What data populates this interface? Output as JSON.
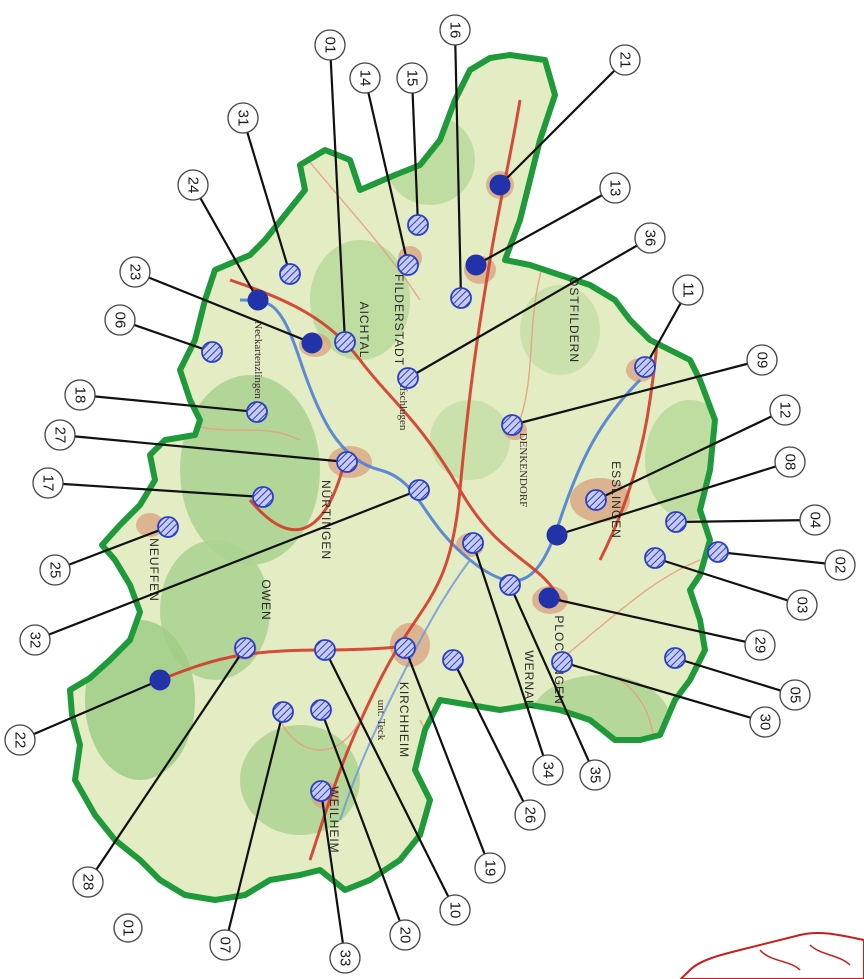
{
  "map": {
    "orientation": "rotated 90° clockwise",
    "colors": {
      "district_border": "#1f9a3a",
      "terrain_low": "#e8efc8",
      "terrain_forest": "#a8d08d",
      "road_main": "#d23b2a",
      "river": "#4d7fd6",
      "marker_fill": "#2233aa",
      "marker_outline": "#2a3fc7",
      "callout_line": "#111111",
      "callout_circle_fill": "#ffffff",
      "inset_outline": "#cc1d1d"
    },
    "place_labels": [
      "FILDERSTADT",
      "OSTFILDERN",
      "ESSLINGEN",
      "PLOCHINGEN",
      "WERNAU",
      "KIRCHHEIM",
      "unt. Teck",
      "NÜRTINGEN",
      "OWEN",
      "WEILHEIM",
      "AICHTAL",
      "DENKENDORF",
      "NEUFFEN",
      "Wolfschlugen",
      "Neckartenzlingen"
    ],
    "markers": [
      {
        "id": "01",
        "kind": "hatched"
      },
      {
        "id": "02",
        "kind": "hatched"
      },
      {
        "id": "03",
        "kind": "hatched"
      },
      {
        "id": "04",
        "kind": "hatched"
      },
      {
        "id": "05",
        "kind": "hatched"
      },
      {
        "id": "06",
        "kind": "hatched"
      },
      {
        "id": "07",
        "kind": "hatched"
      },
      {
        "id": "08",
        "kind": "solid"
      },
      {
        "id": "09",
        "kind": "hatched"
      },
      {
        "id": "10",
        "kind": "hatched"
      },
      {
        "id": "11",
        "kind": "hatched"
      },
      {
        "id": "12",
        "kind": "hatched"
      },
      {
        "id": "13",
        "kind": "solid"
      },
      {
        "id": "14",
        "kind": "hatched"
      },
      {
        "id": "15",
        "kind": "hatched"
      },
      {
        "id": "16",
        "kind": "hatched"
      },
      {
        "id": "17",
        "kind": "hatched"
      },
      {
        "id": "18",
        "kind": "hatched"
      },
      {
        "id": "19",
        "kind": "hatched"
      },
      {
        "id": "20",
        "kind": "hatched"
      },
      {
        "id": "21",
        "kind": "solid"
      },
      {
        "id": "22",
        "kind": "solid"
      },
      {
        "id": "23",
        "kind": "solid"
      },
      {
        "id": "24",
        "kind": "solid"
      },
      {
        "id": "25",
        "kind": "hatched"
      },
      {
        "id": "26",
        "kind": "hatched"
      },
      {
        "id": "27",
        "kind": "hatched"
      },
      {
        "id": "28",
        "kind": "hatched"
      },
      {
        "id": "29",
        "kind": "solid"
      },
      {
        "id": "30",
        "kind": "hatched"
      },
      {
        "id": "31",
        "kind": "hatched"
      },
      {
        "id": "32",
        "kind": "hatched"
      },
      {
        "id": "33",
        "kind": "hatched"
      },
      {
        "id": "34",
        "kind": "hatched"
      },
      {
        "id": "35",
        "kind": "hatched"
      },
      {
        "id": "36",
        "kind": "hatched"
      }
    ],
    "corner_label": "01"
  }
}
